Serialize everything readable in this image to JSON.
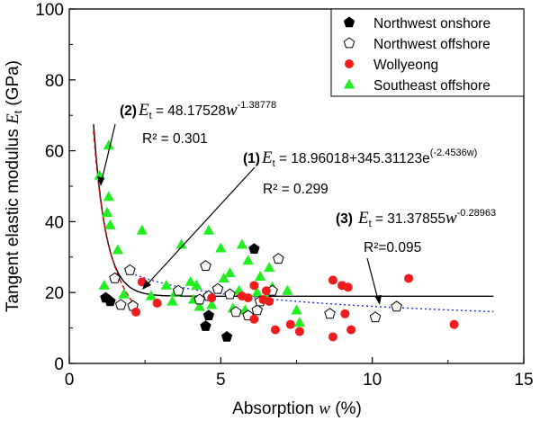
{
  "chart_data": {
    "type": "scatter",
    "xlabel": "Absorption w (%)",
    "xlabel_parts": {
      "main": "Absorption ",
      "var": "w",
      "unit": " (%)"
    },
    "ylabel": "Tangent elastic modulus Et (GPa)",
    "ylabel_parts": {
      "main": "Tangent elastic modulus ",
      "var": "E",
      "sub": "t",
      "unit": " (GPa)"
    },
    "xlim": [
      0,
      15
    ],
    "ylim": [
      0,
      100
    ],
    "xticks": [
      "0",
      "5",
      "10",
      "15"
    ],
    "yticks": [
      "0",
      "20",
      "40",
      "60",
      "80",
      "100"
    ],
    "grid": false,
    "legend_position": "top-right",
    "series": [
      {
        "name": "Northwest onshore",
        "marker": "filled-pentagon",
        "color": "#000000",
        "points": [
          [
            1.2,
            18.5
          ],
          [
            1.35,
            17.5
          ],
          [
            4.5,
            10.5
          ],
          [
            4.6,
            13.5
          ],
          [
            5.2,
            7.5
          ],
          [
            6.1,
            32.3
          ]
        ]
      },
      {
        "name": "Northwest offshore",
        "marker": "open-pentagon",
        "color": "#000000",
        "points": [
          [
            1.5,
            24
          ],
          [
            1.7,
            16.5
          ],
          [
            2.0,
            26.3
          ],
          [
            2.1,
            16.2
          ],
          [
            3.6,
            20.5
          ],
          [
            4.3,
            18
          ],
          [
            4.5,
            27.5
          ],
          [
            4.6,
            19
          ],
          [
            4.9,
            21
          ],
          [
            5.3,
            19.5
          ],
          [
            5.5,
            14.5
          ],
          [
            5.9,
            13.5
          ],
          [
            6.2,
            15
          ],
          [
            6.3,
            17.5
          ],
          [
            6.7,
            20.5
          ],
          [
            6.9,
            29.5
          ],
          [
            8.6,
            14
          ],
          [
            10.1,
            13
          ],
          [
            10.8,
            16
          ]
        ]
      },
      {
        "name": "Wollyeong",
        "marker": "filled-circle",
        "color": "#ee1c1c",
        "points": [
          [
            2.2,
            14.5
          ],
          [
            2.4,
            23
          ],
          [
            2.9,
            17
          ],
          [
            4.7,
            18.5
          ],
          [
            5.7,
            19
          ],
          [
            5.9,
            18.5
          ],
          [
            6.1,
            22
          ],
          [
            6.4,
            18
          ],
          [
            6.5,
            20.5
          ],
          [
            6.6,
            17.5
          ],
          [
            6.1,
            12.5
          ],
          [
            6.8,
            9.5
          ],
          [
            7.3,
            11
          ],
          [
            7.6,
            9
          ],
          [
            8.7,
            23.5
          ],
          [
            8.7,
            7.5
          ],
          [
            9.0,
            22
          ],
          [
            9.2,
            21.5
          ],
          [
            9.1,
            14
          ],
          [
            9.3,
            9.5
          ],
          [
            11.2,
            24
          ],
          [
            12.7,
            11
          ]
        ]
      },
      {
        "name": "Southeast offshore",
        "marker": "filled-triangle",
        "color": "#22ee22",
        "points": [
          [
            1.0,
            53
          ],
          [
            1.3,
            61.5
          ],
          [
            1.3,
            47
          ],
          [
            1.25,
            42.5
          ],
          [
            1.35,
            39
          ],
          [
            1.15,
            22
          ],
          [
            1.6,
            32
          ],
          [
            1.8,
            19.5
          ],
          [
            2.4,
            37.5
          ],
          [
            2.7,
            19
          ],
          [
            3.2,
            22
          ],
          [
            3.4,
            17.5
          ],
          [
            3.5,
            20
          ],
          [
            3.7,
            33.5
          ],
          [
            4.0,
            23
          ],
          [
            4.1,
            18
          ],
          [
            4.2,
            22
          ],
          [
            4.3,
            16
          ],
          [
            4.6,
            37.5
          ],
          [
            4.7,
            16.5
          ],
          [
            5.0,
            32.5
          ],
          [
            5.1,
            24
          ],
          [
            5.3,
            25.5
          ],
          [
            5.4,
            15.5
          ],
          [
            5.6,
            20.5
          ],
          [
            5.7,
            33.5
          ],
          [
            5.8,
            15
          ],
          [
            5.9,
            29
          ],
          [
            6.2,
            20
          ],
          [
            6.3,
            24.5
          ],
          [
            6.5,
            18.5
          ],
          [
            6.6,
            27
          ],
          [
            6.7,
            21.5
          ],
          [
            7.2,
            20.5
          ],
          [
            7.5,
            15
          ],
          [
            7.6,
            11.5
          ]
        ]
      }
    ],
    "fits": [
      {
        "id": "(1)",
        "label": "(1)",
        "formula": "Et = 18.96018+345.31123e^(-2.4536w)",
        "r2": "R² = 0.299",
        "style": "solid-black",
        "a": 18.96018,
        "b": 345.31123,
        "k": -2.4536,
        "x_range": [
          0.8,
          14
        ]
      },
      {
        "id": "(2)",
        "label": "(2)",
        "formula": "Et = 48.17528w^-1.38778",
        "r2": "R² = 0.301",
        "style": "dashed-red",
        "a": 48.17528,
        "p": -1.38778,
        "x_range": [
          0.8,
          2.3
        ]
      },
      {
        "id": "(3)",
        "label": "(3)",
        "formula": "Et = 31.37855w^-0.28963",
        "r2": "R²=0.095",
        "style": "dotted-blue",
        "a": 31.37855,
        "p": -0.28963,
        "x_range": [
          1.9,
          14
        ]
      }
    ],
    "annotations": {
      "eq2": {
        "num": "(2)",
        "var": "E",
        "sub": "t",
        "rest": " = 48.17528",
        "wvar": "w",
        "sup": "-1.38778",
        "r2": "R² = 0.301"
      },
      "eq1": {
        "num": "(1)",
        "var": "E",
        "sub": "t",
        "rest": " = 18.96018+345.31123e",
        "sup": "(-2.4536w)",
        "r2": "R² = 0.299"
      },
      "eq3": {
        "num": "(3)",
        "var": "E",
        "sub": "t",
        "rest": " = 31.37855",
        "wvar": "w",
        "sup": "-0.28963",
        "r2": "R²=0.095"
      }
    }
  }
}
